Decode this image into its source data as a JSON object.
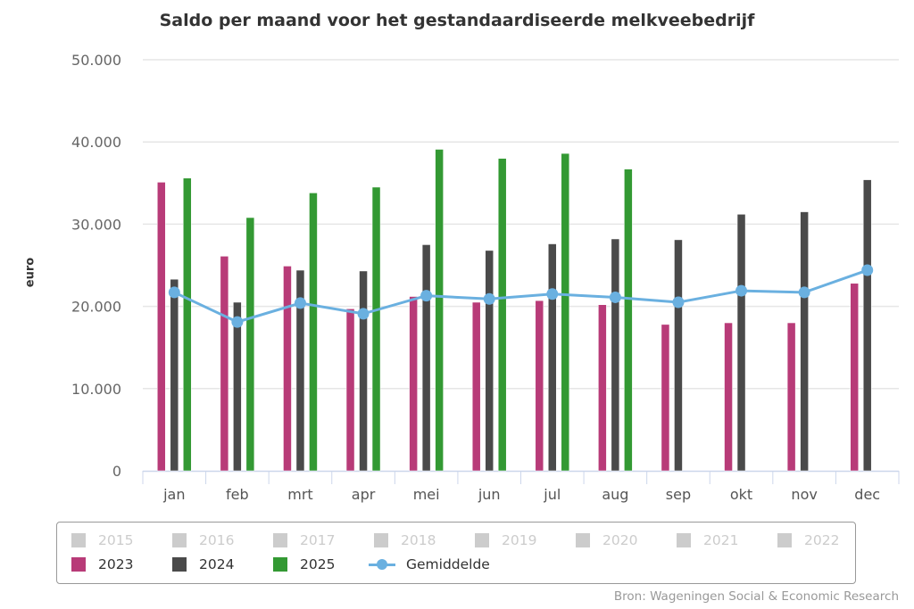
{
  "chart_data": {
    "type": "bar",
    "title": "Saldo per maand voor het gestandaardiseerde melkveebedrijf",
    "xlabel": "",
    "ylabel": "euro",
    "ylim": [
      0,
      50000
    ],
    "yticks": [
      0,
      10000,
      20000,
      30000,
      40000,
      50000
    ],
    "ytick_labels": [
      "0",
      "10.000",
      "20.000",
      "30.000",
      "40.000",
      "50.000"
    ],
    "grid": true,
    "categories": [
      "jan",
      "feb",
      "mrt",
      "apr",
      "mei",
      "jun",
      "jul",
      "aug",
      "sep",
      "okt",
      "nov",
      "dec"
    ],
    "series": [
      {
        "name": "2023",
        "type": "bar",
        "color": "#b83b78",
        "values": [
          35100,
          26100,
          24900,
          19700,
          21200,
          20500,
          20700,
          20200,
          17800,
          18000,
          18000,
          22800
        ]
      },
      {
        "name": "2024",
        "type": "bar",
        "color": "#4a4a4a",
        "values": [
          23300,
          20500,
          24400,
          24300,
          27500,
          26800,
          27600,
          28200,
          28100,
          31200,
          31500,
          35400
        ]
      },
      {
        "name": "2025",
        "type": "bar",
        "color": "#339933",
        "values": [
          35600,
          30800,
          33800,
          34500,
          39100,
          38000,
          38600,
          36700,
          null,
          null,
          null,
          null
        ]
      },
      {
        "name": "Gemiddelde",
        "type": "line",
        "color": "#6ab0e0",
        "values": [
          21700,
          18100,
          20400,
          19100,
          21300,
          20900,
          21500,
          21100,
          20500,
          21900,
          21700,
          24400
        ]
      }
    ],
    "legend": {
      "position": "bottom",
      "inactive_color": "#cccccc",
      "inactive_items": [
        "2015",
        "2016",
        "2017",
        "2018",
        "2019",
        "2020",
        "2021",
        "2022"
      ],
      "active_items": [
        "2023",
        "2024",
        "2025",
        "Gemiddelde"
      ]
    },
    "source": "Bron: Wageningen Social & Economic Research"
  }
}
